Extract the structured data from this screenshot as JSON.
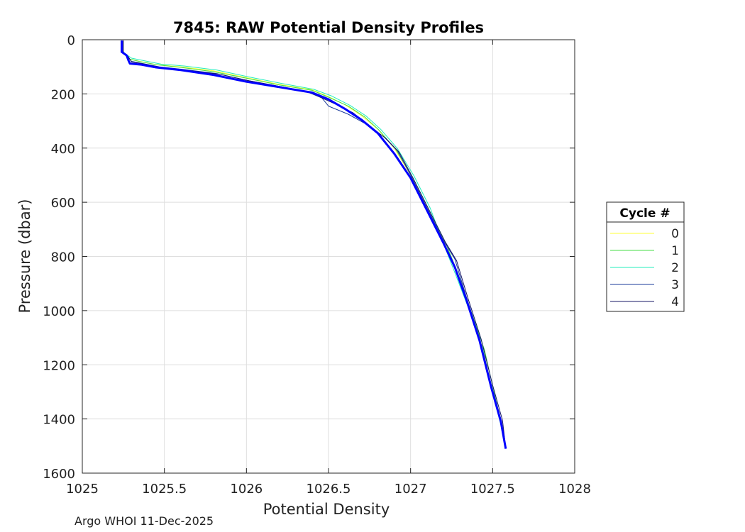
{
  "chart_data": {
    "type": "line",
    "title": "7845: RAW Potential Density Profiles",
    "xlabel": "Potential Density",
    "ylabel": "Pressure (dbar)",
    "xlim": [
      1025,
      1028
    ],
    "ylim": [
      0,
      1600
    ],
    "y_reversed": true,
    "grid": true,
    "xticks": [
      1025,
      1025.5,
      1026,
      1026.5,
      1027,
      1027.5,
      1028
    ],
    "xtick_labels": [
      "1025",
      "1025.5",
      "1026",
      "1026.5",
      "1027",
      "1027.5",
      "1028"
    ],
    "yticks": [
      0,
      200,
      400,
      600,
      800,
      1000,
      1200,
      1400,
      1600
    ],
    "ytick_labels": [
      "0",
      "200",
      "400",
      "600",
      "800",
      "1000",
      "1200",
      "1400",
      "1600"
    ],
    "legend": {
      "title": "Cycle #",
      "placement": "outside-right"
    },
    "series": [
      {
        "name": "0",
        "color": "#ffff33",
        "width": 1,
        "points": [
          [
            1025.24,
            3
          ],
          [
            1025.24,
            40
          ],
          [
            1025.26,
            55
          ],
          [
            1025.28,
            70
          ],
          [
            1025.35,
            80
          ],
          [
            1025.45,
            92
          ],
          [
            1025.6,
            100
          ],
          [
            1025.8,
            115
          ],
          [
            1026.0,
            140
          ],
          [
            1026.2,
            165
          ],
          [
            1026.4,
            185
          ],
          [
            1026.5,
            210
          ],
          [
            1026.6,
            240
          ],
          [
            1026.7,
            280
          ],
          [
            1026.8,
            330
          ],
          [
            1026.9,
            400
          ],
          [
            1027.0,
            500
          ],
          [
            1027.1,
            620
          ],
          [
            1027.2,
            740
          ],
          [
            1027.28,
            860
          ],
          [
            1027.36,
            1000
          ],
          [
            1027.44,
            1140
          ],
          [
            1027.5,
            1300
          ],
          [
            1027.55,
            1420
          ]
        ]
      },
      {
        "name": "1",
        "color": "#44dd44",
        "width": 1,
        "points": [
          [
            1025.24,
            3
          ],
          [
            1025.24,
            42
          ],
          [
            1025.26,
            56
          ],
          [
            1025.29,
            72
          ],
          [
            1025.36,
            82
          ],
          [
            1025.46,
            93
          ],
          [
            1025.6,
            102
          ],
          [
            1025.8,
            118
          ],
          [
            1026.0,
            142
          ],
          [
            1026.2,
            167
          ],
          [
            1026.4,
            187
          ],
          [
            1026.5,
            212
          ],
          [
            1026.62,
            245
          ],
          [
            1026.72,
            285
          ],
          [
            1026.81,
            335
          ],
          [
            1026.91,
            405
          ],
          [
            1027.01,
            505
          ],
          [
            1027.11,
            625
          ],
          [
            1027.21,
            745
          ],
          [
            1027.29,
            865
          ],
          [
            1027.37,
            1005
          ],
          [
            1027.45,
            1145
          ],
          [
            1027.51,
            1305
          ],
          [
            1027.56,
            1430
          ]
        ]
      },
      {
        "name": "2",
        "color": "#22eebb",
        "width": 1,
        "points": [
          [
            1025.24,
            3
          ],
          [
            1025.24,
            40
          ],
          [
            1025.27,
            55
          ],
          [
            1025.3,
            68
          ],
          [
            1025.38,
            78
          ],
          [
            1025.48,
            90
          ],
          [
            1025.62,
            97
          ],
          [
            1025.82,
            112
          ],
          [
            1026.02,
            138
          ],
          [
            1026.22,
            162
          ],
          [
            1026.41,
            183
          ],
          [
            1026.52,
            208
          ],
          [
            1026.63,
            242
          ],
          [
            1026.73,
            282
          ],
          [
            1026.82,
            332
          ],
          [
            1026.92,
            402
          ],
          [
            1027.02,
            502
          ],
          [
            1027.12,
            622
          ],
          [
            1027.2,
            752
          ],
          [
            1027.27,
            860
          ],
          [
            1027.36,
            1002
          ],
          [
            1027.44,
            1142
          ],
          [
            1027.5,
            1302
          ],
          [
            1027.55,
            1422
          ]
        ]
      },
      {
        "name": "3",
        "color": "#1a3a9a",
        "width": 1,
        "points": [
          [
            1025.25,
            3
          ],
          [
            1025.25,
            45
          ],
          [
            1025.27,
            60
          ],
          [
            1025.3,
            80
          ],
          [
            1025.37,
            88
          ],
          [
            1025.47,
            100
          ],
          [
            1025.62,
            110
          ],
          [
            1025.82,
            125
          ],
          [
            1026.0,
            150
          ],
          [
            1026.18,
            170
          ],
          [
            1026.36,
            190
          ],
          [
            1026.46,
            215
          ],
          [
            1026.5,
            245
          ],
          [
            1026.62,
            275
          ],
          [
            1026.74,
            315
          ],
          [
            1026.84,
            360
          ],
          [
            1026.92,
            410
          ],
          [
            1027.0,
            500
          ],
          [
            1027.1,
            620
          ],
          [
            1027.2,
            740
          ],
          [
            1027.27,
            810
          ],
          [
            1027.34,
            950
          ],
          [
            1027.42,
            1100
          ],
          [
            1027.49,
            1270
          ],
          [
            1027.55,
            1400
          ],
          [
            1027.58,
            1505
          ]
        ]
      },
      {
        "name": "4",
        "color": "#141466",
        "width": 1,
        "points": [
          [
            1025.25,
            3
          ],
          [
            1025.25,
            48
          ],
          [
            1025.28,
            62
          ],
          [
            1025.3,
            82
          ],
          [
            1025.38,
            90
          ],
          [
            1025.48,
            102
          ],
          [
            1025.64,
            113
          ],
          [
            1025.84,
            128
          ],
          [
            1026.02,
            152
          ],
          [
            1026.2,
            172
          ],
          [
            1026.38,
            193
          ],
          [
            1026.47,
            218
          ],
          [
            1026.55,
            240
          ],
          [
            1026.65,
            270
          ],
          [
            1026.75,
            318
          ],
          [
            1026.85,
            365
          ],
          [
            1026.93,
            415
          ],
          [
            1027.01,
            505
          ],
          [
            1027.11,
            625
          ],
          [
            1027.21,
            745
          ],
          [
            1027.28,
            815
          ],
          [
            1027.35,
            955
          ],
          [
            1027.43,
            1105
          ],
          [
            1027.5,
            1275
          ],
          [
            1027.56,
            1405
          ],
          [
            1027.58,
            1508
          ]
        ]
      },
      {
        "name": "",
        "color": "#0000ff",
        "width": 3,
        "points": [
          [
            1025.24,
            3
          ],
          [
            1025.24,
            45
          ],
          [
            1025.27,
            58
          ],
          [
            1025.28,
            75
          ],
          [
            1025.29,
            88
          ],
          [
            1025.36,
            92
          ],
          [
            1025.45,
            102
          ],
          [
            1025.6,
            112
          ],
          [
            1025.8,
            130
          ],
          [
            1026.0,
            155
          ],
          [
            1026.2,
            175
          ],
          [
            1026.4,
            195
          ],
          [
            1026.5,
            220
          ],
          [
            1026.6,
            255
          ],
          [
            1026.7,
            295
          ],
          [
            1026.8,
            345
          ],
          [
            1026.9,
            420
          ],
          [
            1027.0,
            510
          ],
          [
            1027.1,
            630
          ],
          [
            1027.2,
            750
          ],
          [
            1027.27,
            840
          ],
          [
            1027.34,
            960
          ],
          [
            1027.42,
            1110
          ],
          [
            1027.49,
            1280
          ],
          [
            1027.55,
            1410
          ],
          [
            1027.58,
            1510
          ]
        ]
      }
    ]
  },
  "footer": {
    "text": "Argo WHOI 11-Dec-2025"
  }
}
